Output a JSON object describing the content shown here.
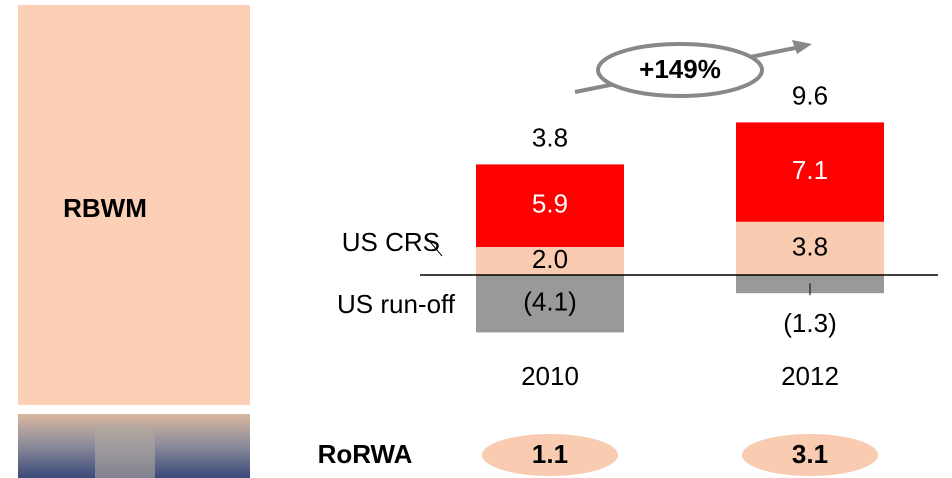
{
  "chart_data": {
    "type": "stacked-bar",
    "section_label": "RBWM",
    "categories": [
      "2010",
      "2012"
    ],
    "series": [
      {
        "name": "US run-off",
        "color": "#999999",
        "values": [
          -4.1,
          -1.3
        ],
        "value_labels": [
          "(4.1)",
          "(1.3)"
        ],
        "label_color": "#000000"
      },
      {
        "name": "US CRS",
        "color": "#f9cbb0",
        "values": [
          2.0,
          3.8
        ],
        "value_labels": [
          "2.0",
          "3.8"
        ],
        "label_color": "#000000"
      },
      {
        "color": "#ff0000",
        "values": [
          5.9,
          7.1
        ],
        "label_color": "#ffffff"
      }
    ],
    "totals": [
      3.8,
      9.6
    ],
    "growth_label": "+149%",
    "ylim": [
      -6,
      13
    ],
    "metric": {
      "label": "RoRWA",
      "values": [
        1.1,
        3.1
      ],
      "color": "#f9cbb0"
    }
  }
}
